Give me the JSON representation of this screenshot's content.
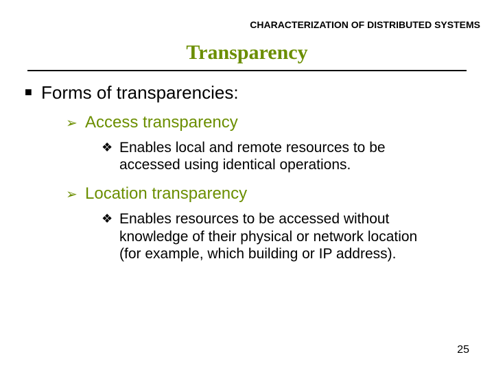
{
  "header": {
    "label": "CHARACTERIZATION OF DISTRIBUTED SYSTEMS"
  },
  "title": {
    "text": "Transparency",
    "color": "#6b8e00"
  },
  "bullets": {
    "square": "■",
    "arrow": "➢",
    "diamond": "❖"
  },
  "colors": {
    "olive": "#6b8e00",
    "text": "#000000"
  },
  "content": {
    "lvl1": "Forms of transparencies:",
    "sections": [
      {
        "heading": "Access transparency",
        "body": "Enables local and remote resources to be accessed using identical operations."
      },
      {
        "heading": "Location transparency",
        "body": "Enables resources to be accessed without knowledge of their physical or network location (for example, which building or IP address)."
      }
    ]
  },
  "page_number": "25"
}
